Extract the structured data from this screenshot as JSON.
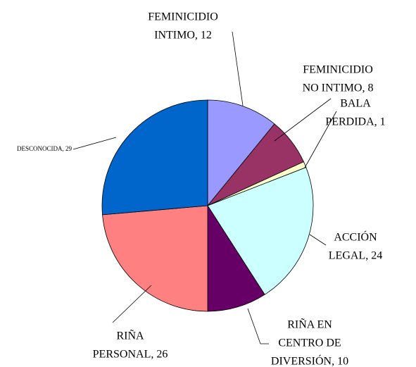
{
  "chart_data": {
    "type": "pie",
    "labels": [
      [
        "FEMINICIDIO",
        "INTIMO, 12"
      ],
      [
        "FEMINICIDIO",
        "NO INTIMO, 8"
      ],
      [
        "BALA",
        "PERDIDA, 1"
      ],
      [
        "ACCIÓN",
        "LEGAL, 24"
      ],
      [
        "RIÑA EN",
        "CENTRO DE",
        "DIVERSIÓN, 10"
      ],
      [
        "RIÑA",
        "PERSONAL, 26"
      ],
      [
        "DESCONOCIDA, 29"
      ]
    ],
    "values": [
      12,
      8,
      1,
      24,
      10,
      26,
      29
    ],
    "colors": [
      "#9999ff",
      "#993366",
      "#ffffcc",
      "#ccffff",
      "#660066",
      "#ff8080",
      "#0066cc"
    ]
  }
}
